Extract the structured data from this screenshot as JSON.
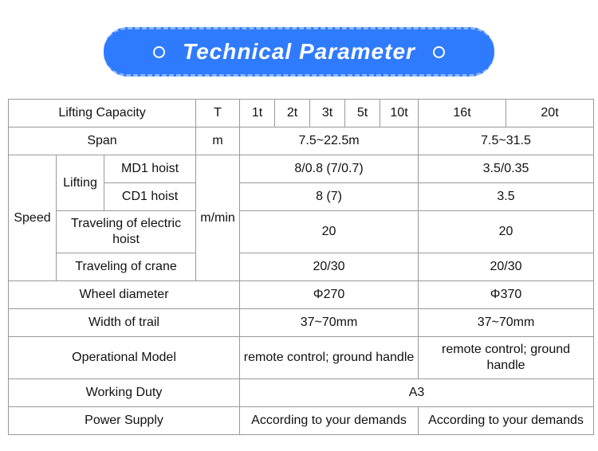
{
  "header": {
    "title": "Technical Parameter",
    "bg_color": "#2f7bff",
    "text_color": "#ffffff",
    "title_fontsize": 28,
    "title_italic": true
  },
  "table": {
    "border_color": "#999999",
    "cell_fontsize": 16,
    "text_color": "#111111",
    "columns_group_a": [
      "1t",
      "2t",
      "3t",
      "5t",
      "10t"
    ],
    "columns_group_b": [
      "16t",
      "20t"
    ],
    "rows": {
      "lifting_capacity": {
        "label": "Lifting Capacity",
        "unit": "T"
      },
      "span": {
        "label": "Span",
        "unit": "m",
        "value_a": "7.5~22.5m",
        "value_b": "7.5~31.5"
      },
      "speed_label": "Speed",
      "speed_unit": "m/min",
      "lifting_label": "Lifting",
      "md1": {
        "label": "MD1 hoist",
        "value_a": "8/0.8 (7/0.7)",
        "value_b": "3.5/0.35"
      },
      "cd1": {
        "label": "CD1 hoist",
        "value_a": "8 (7)",
        "value_b": "3.5"
      },
      "travel_hoist": {
        "label": "Traveling of electric hoist",
        "value_a": "20",
        "value_b": "20"
      },
      "travel_crane": {
        "label": "Traveling of crane",
        "value_a": "20/30",
        "value_b": "20/30"
      },
      "wheel_diameter": {
        "label": "Wheel diameter",
        "value_a": "Φ270",
        "value_b": "Φ370"
      },
      "width_of_trail": {
        "label": "Width of trail",
        "value_a": "37~70mm",
        "value_b": "37~70mm"
      },
      "operational_model": {
        "label": "Operational Model",
        "value_a": "remote control; ground handle",
        "value_b": "remote control; ground handle"
      },
      "working_duty": {
        "label": "Working Duty",
        "value": "A3"
      },
      "power_supply": {
        "label": "Power Supply",
        "value_a": "According to your demands",
        "value_b": "According to your demands"
      }
    }
  }
}
